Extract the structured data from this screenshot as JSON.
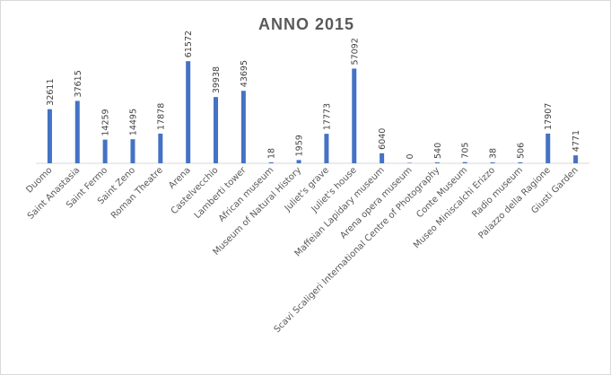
{
  "chart_data": {
    "type": "bar",
    "title": "ANNO 2015",
    "xlabel": "",
    "ylabel": "",
    "ylim": [
      0,
      66000
    ],
    "grid": false,
    "legend": "none",
    "bar_color": "#4472c4",
    "categories": [
      "Duomo",
      "Saint Anastasia",
      "Saint Fermo",
      "Saint Zeno",
      "Roman Theatre",
      "Arena",
      "Castelvecchio",
      "Lamberti tower",
      "African museum",
      "Museum of Natural History",
      "Juliet's grave",
      "Juliet's house",
      "Maffeian Lapidary museum",
      "Arena opera museum",
      "Scavi Scaligeri International Centre of Photography",
      "Conte Museum",
      "Museo Miniscalchi Erizzo",
      "Radio museum",
      "Palazzo della Ragione",
      "Giusti Garden"
    ],
    "series": [
      {
        "values": [
          32611,
          37615,
          14259,
          14495,
          17878,
          61572,
          39938,
          43695,
          18,
          1959,
          17773,
          57092,
          6040,
          0,
          540,
          705,
          38,
          506,
          17907,
          4771
        ]
      }
    ]
  }
}
